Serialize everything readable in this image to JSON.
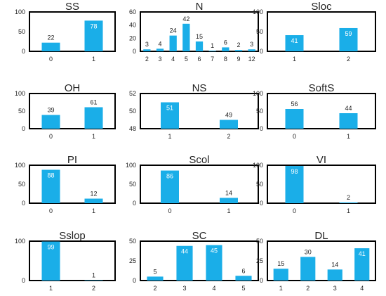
{
  "colors": {
    "bar": "#1aaee8",
    "frame": "#000000",
    "text": "#222222",
    "label_in_bar": "#ffffff"
  },
  "chart_data": [
    {
      "type": "bar",
      "title": "SS",
      "categories": [
        "0",
        "1"
      ],
      "values": [
        22,
        78
      ],
      "ylim": [
        0,
        100
      ],
      "yticks": [
        "0",
        "50",
        "100"
      ],
      "labels_inside": [
        false,
        true
      ]
    },
    {
      "type": "bar",
      "title": "N",
      "categories": [
        "2",
        "3",
        "4",
        "5",
        "6",
        "7",
        "8",
        "9",
        "12"
      ],
      "values": [
        3,
        4,
        24,
        42,
        15,
        1,
        6,
        2,
        3
      ],
      "ylim": [
        0,
        60
      ],
      "yticks": [
        "0",
        "20",
        "40",
        "60"
      ],
      "labels_inside": [
        false,
        false,
        false,
        false,
        false,
        false,
        false,
        false,
        false
      ]
    },
    {
      "type": "bar",
      "title": "Sloc",
      "categories": [
        "1",
        "2"
      ],
      "values": [
        41,
        59
      ],
      "ylim": [
        0,
        100
      ],
      "yticks": [
        "0",
        "50",
        "100"
      ],
      "labels_inside": [
        true,
        true
      ]
    },
    {
      "type": "bar",
      "title": "OH",
      "categories": [
        "0",
        "1"
      ],
      "values": [
        39,
        61
      ],
      "ylim": [
        0,
        100
      ],
      "yticks": [
        "0",
        "50",
        "100"
      ],
      "labels_inside": [
        false,
        false
      ]
    },
    {
      "type": "bar",
      "title": "NS",
      "categories": [
        "1",
        "2"
      ],
      "values": [
        51,
        49
      ],
      "ylim": [
        48,
        52
      ],
      "yticks": [
        "48",
        "50",
        "52"
      ],
      "labels_inside": [
        true,
        true
      ]
    },
    {
      "type": "bar",
      "title": "SoftS",
      "categories": [
        "0",
        "1"
      ],
      "values": [
        56,
        44
      ],
      "ylim": [
        0,
        100
      ],
      "yticks": [
        "0",
        "50",
        "100"
      ],
      "labels_inside": [
        false,
        false
      ]
    },
    {
      "type": "bar",
      "title": "PI",
      "categories": [
        "0",
        "1"
      ],
      "values": [
        88,
        12
      ],
      "ylim": [
        0,
        100
      ],
      "yticks": [
        "0",
        "50",
        "100"
      ],
      "labels_inside": [
        true,
        false
      ]
    },
    {
      "type": "bar",
      "title": "Scol",
      "categories": [
        "0",
        "1"
      ],
      "values": [
        86,
        14
      ],
      "ylim": [
        0,
        100
      ],
      "yticks": [
        "0",
        "50",
        "100"
      ],
      "labels_inside": [
        true,
        false
      ]
    },
    {
      "type": "bar",
      "title": "VI",
      "categories": [
        "0",
        "1"
      ],
      "values": [
        98,
        2
      ],
      "ylim": [
        0,
        100
      ],
      "yticks": [
        "0",
        "50",
        "100"
      ],
      "labels_inside": [
        true,
        false
      ]
    },
    {
      "type": "bar",
      "title": "Sslop",
      "categories": [
        "1",
        "2"
      ],
      "values": [
        99,
        1
      ],
      "ylim": [
        0,
        100
      ],
      "yticks": [
        "0",
        "100"
      ],
      "labels_inside": [
        true,
        false
      ]
    },
    {
      "type": "bar",
      "title": "SC",
      "categories": [
        "2",
        "3",
        "4",
        "5"
      ],
      "values": [
        5,
        44,
        45,
        6
      ],
      "ylim": [
        0,
        50
      ],
      "yticks": [
        "0",
        "25",
        "50"
      ],
      "labels_inside": [
        false,
        true,
        true,
        false
      ]
    },
    {
      "type": "bar",
      "title": "DL",
      "categories": [
        "1",
        "2",
        "3",
        "4"
      ],
      "values": [
        15,
        30,
        14,
        41
      ],
      "ylim": [
        0,
        50
      ],
      "yticks": [
        "0",
        "25",
        "50"
      ],
      "labels_inside": [
        false,
        false,
        false,
        true
      ]
    }
  ]
}
